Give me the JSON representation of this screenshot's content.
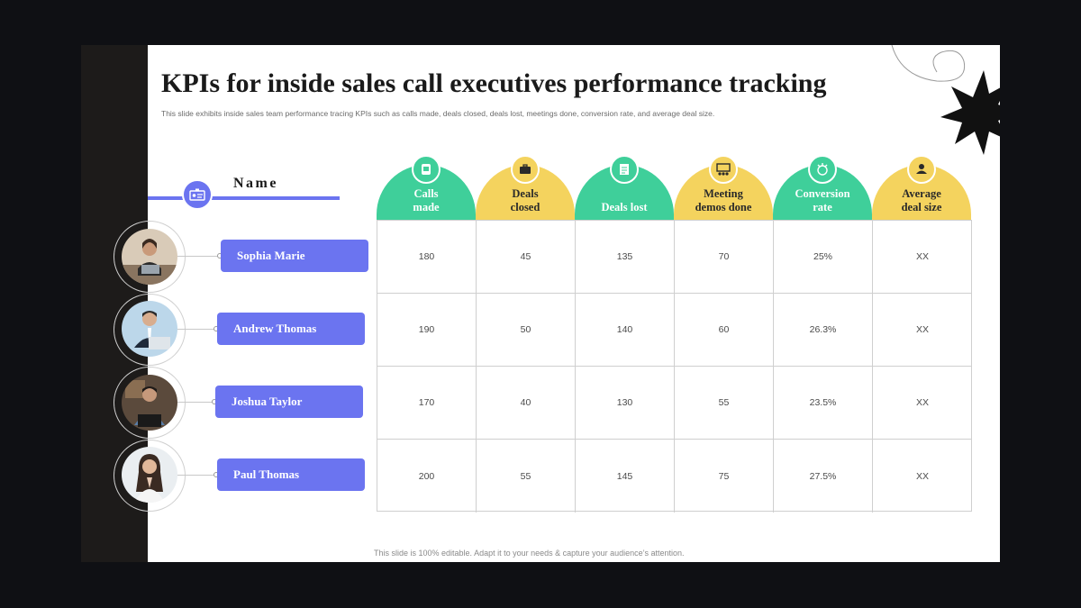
{
  "slide": {
    "title": "KPIs for inside sales call executives performance tracking",
    "subtitle": "This slide exhibits inside sales team performance tracing KPIs such as calls made, deals closed, deals lost, meetings done, conversion rate, and average deal size.",
    "footer": "This slide is 100% editable. Adapt it to your needs & capture your audience’s attention."
  },
  "name_header": {
    "label": "Name",
    "icon": "id-card-icon"
  },
  "colors": {
    "accent": "#6b74f0",
    "green": "#3fcf9a",
    "yellow": "#f4d35e",
    "dark": "#1d1b1a"
  },
  "kpis": [
    {
      "label": "Calls made",
      "icon": "phone-icon",
      "color": "green"
    },
    {
      "label": "Deals closed",
      "icon": "briefcase-icon",
      "color": "yellow"
    },
    {
      "label": "Deals lost",
      "icon": "document-icon",
      "color": "green"
    },
    {
      "label": "Meeting demos done",
      "icon": "presentation-icon",
      "color": "yellow"
    },
    {
      "label": "Conversion rate",
      "icon": "dollar-arrows-icon",
      "color": "green"
    },
    {
      "label": "Average deal size",
      "icon": "handshake-icon",
      "color": "yellow"
    }
  ],
  "people": [
    {
      "name": "Sophia Marie",
      "values": [
        "180",
        "45",
        "135",
        "70",
        "25%",
        "XX"
      ]
    },
    {
      "name": "Andrew Thomas",
      "values": [
        "190",
        "50",
        "140",
        "60",
        "26.3%",
        "XX"
      ]
    },
    {
      "name": "Joshua Taylor",
      "values": [
        "170",
        "40",
        "130",
        "55",
        "23.5%",
        "XX"
      ]
    },
    {
      "name": "Paul Thomas",
      "values": [
        "200",
        "55",
        "145",
        "75",
        "27.5%",
        "XX"
      ]
    }
  ]
}
